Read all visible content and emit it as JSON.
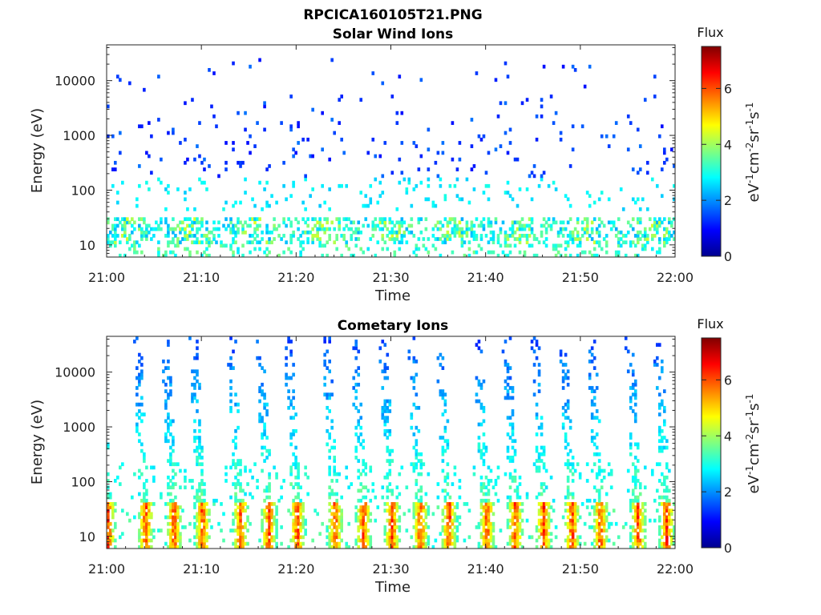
{
  "figure": {
    "title": "RPCICA160105T21.PNG"
  },
  "chart_data": [
    {
      "type": "heatmap",
      "title": "Solar Wind Ions",
      "xlabel": "Time",
      "ylabel": "Energy (eV)",
      "x_ticks": [
        "21:00",
        "21:10",
        "21:20",
        "21:30",
        "21:40",
        "21:50",
        "22:00"
      ],
      "xlim": [
        "21:00",
        "22:00"
      ],
      "y_scale": "log",
      "y_ticks": [
        "10",
        "100",
        "1000",
        "10000"
      ],
      "ylim": [
        6,
        45000
      ],
      "colorbar": {
        "title": "Flux",
        "label": "eV-1cm-2sr-1s-1",
        "ticks": [
          "0",
          "2",
          "4",
          "6"
        ],
        "range": [
          0,
          7.5
        ],
        "colormap": "jet"
      },
      "pattern": {
        "description_kind": "solar",
        "low_energy_band_eV": [
          10,
          30
        ],
        "low_energy_flux_max": 4.5,
        "sparse_high_energy_flux": [
          1.0,
          1.8
        ],
        "high_energy_range_eV": [
          100,
          25000
        ],
        "mid_energy_flux": [
          2.4,
          3.0
        ]
      }
    },
    {
      "type": "heatmap",
      "title": "Cometary Ions",
      "xlabel": "Time",
      "ylabel": "Energy (eV)",
      "x_ticks": [
        "21:00",
        "21:10",
        "21:20",
        "21:30",
        "21:40",
        "21:50",
        "22:00"
      ],
      "xlim": [
        "21:00",
        "22:00"
      ],
      "y_scale": "log",
      "y_ticks": [
        "10",
        "100",
        "1000",
        "10000"
      ],
      "ylim": [
        6,
        45000
      ],
      "colorbar": {
        "title": "Flux",
        "label": "eV-1cm-2sr-1s-1",
        "ticks": [
          "0",
          "2",
          "4",
          "6"
        ],
        "range": [
          0,
          7.5
        ],
        "colormap": "jet"
      },
      "pattern": {
        "description_kind": "cometary",
        "burst_times": [
          "21:00",
          "21:04",
          "21:07",
          "21:10",
          "21:14",
          "21:17",
          "21:20",
          "21:24",
          "21:27",
          "21:30",
          "21:33",
          "21:36",
          "21:40",
          "21:43",
          "21:46",
          "21:49",
          "21:52",
          "21:56",
          "21:59"
        ],
        "peak_flux": 6.8,
        "peak_energy_band_eV": [
          8,
          30
        ]
      }
    }
  ]
}
